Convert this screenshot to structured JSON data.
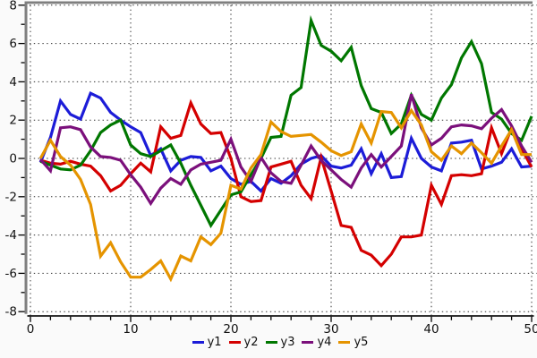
{
  "chart_data": {
    "type": "line",
    "title": "",
    "xlabel": "",
    "ylabel": "",
    "xlim": [
      0,
      50
    ],
    "ylim": [
      -8,
      8
    ],
    "x_ticks": [
      0,
      10,
      20,
      30,
      40,
      50
    ],
    "x_minor_step": 2,
    "y_ticks": [
      -8,
      -6,
      -4,
      -2,
      0,
      2,
      4,
      6,
      8
    ],
    "y_minor_step": 1,
    "grid": "dotted",
    "legend_position": "bottom-center",
    "x": [
      1,
      2,
      3,
      4,
      5,
      6,
      7,
      8,
      9,
      10,
      11,
      12,
      13,
      14,
      15,
      16,
      17,
      18,
      19,
      20,
      21,
      22,
      23,
      24,
      25,
      26,
      27,
      28,
      29,
      30,
      31,
      32,
      33,
      34,
      35,
      36,
      37,
      38,
      39,
      40,
      41,
      42,
      43,
      44,
      45,
      46,
      47,
      48,
      49,
      50
    ],
    "series": [
      {
        "name": "y1",
        "color": "#1c1cd8",
        "values": [
          -0.2,
          1.1,
          3.0,
          2.3,
          2.05,
          3.4,
          3.15,
          2.4,
          2.0,
          1.65,
          1.35,
          0.15,
          0.5,
          -0.65,
          -0.1,
          0.1,
          0.05,
          -0.65,
          -0.4,
          -1.05,
          -1.35,
          -1.2,
          -1.7,
          -1.05,
          -1.3,
          -0.9,
          -0.3,
          0.0,
          0.15,
          -0.4,
          -0.5,
          -0.35,
          0.5,
          -0.8,
          0.25,
          -1.0,
          -0.95,
          1.05,
          0.0,
          -0.45,
          -0.65,
          0.8,
          0.85,
          0.95,
          -0.55,
          -0.4,
          -0.2,
          0.5,
          -0.45,
          -0.4
        ]
      },
      {
        "name": "y2",
        "color": "#d40000",
        "values": [
          -0.1,
          -0.25,
          -0.3,
          -0.15,
          -0.3,
          -0.4,
          -0.9,
          -1.7,
          -1.4,
          -0.8,
          -0.25,
          -0.7,
          1.65,
          1.05,
          1.2,
          2.9,
          1.8,
          1.3,
          1.35,
          0.0,
          -2.0,
          -2.25,
          -2.2,
          -0.45,
          -0.3,
          -0.15,
          -1.4,
          -2.1,
          0.05,
          -1.7,
          -3.5,
          -3.6,
          -4.8,
          -5.05,
          -5.6,
          -5.0,
          -4.1,
          -4.1,
          -4.0,
          -1.4,
          -2.4,
          -0.9,
          -0.85,
          -0.9,
          -0.8,
          1.6,
          0.25,
          1.6,
          0.5,
          -0.45
        ]
      },
      {
        "name": "y3",
        "color": "#007700",
        "values": [
          -0.15,
          -0.35,
          -0.55,
          -0.6,
          -0.35,
          0.4,
          1.35,
          1.75,
          2.0,
          0.7,
          0.25,
          0.1,
          0.4,
          0.7,
          -0.25,
          -1.4,
          -2.45,
          -3.5,
          -2.7,
          -1.9,
          -1.75,
          -0.85,
          0.0,
          1.1,
          1.15,
          3.3,
          3.7,
          7.2,
          5.9,
          5.6,
          5.1,
          5.8,
          3.8,
          2.6,
          2.4,
          1.3,
          1.8,
          3.3,
          2.3,
          2.0,
          3.15,
          3.85,
          5.25,
          6.1,
          4.95,
          2.4,
          2.05,
          1.3,
          0.95,
          2.2
        ]
      },
      {
        "name": "y4",
        "color": "#7b107b",
        "values": [
          -0.05,
          -0.65,
          1.6,
          1.65,
          1.5,
          0.6,
          0.1,
          0.05,
          -0.1,
          -0.85,
          -1.5,
          -2.35,
          -1.55,
          -1.05,
          -1.35,
          -0.6,
          -0.3,
          -0.2,
          -0.1,
          1.0,
          -0.45,
          -1.2,
          0.05,
          -0.75,
          -1.2,
          -1.3,
          -0.35,
          0.65,
          -0.1,
          -0.6,
          -1.1,
          -1.5,
          -0.5,
          0.2,
          -0.45,
          0.1,
          0.65,
          3.35,
          1.6,
          0.7,
          1.05,
          1.65,
          1.75,
          1.7,
          1.55,
          2.1,
          2.55,
          1.7,
          0.65,
          -0.2
        ]
      },
      {
        "name": "y5",
        "color": "#e59400",
        "values": [
          0.0,
          0.95,
          0.1,
          -0.35,
          -1.1,
          -2.4,
          -5.1,
          -4.4,
          -5.4,
          -6.2,
          -6.2,
          -5.8,
          -5.35,
          -6.3,
          -5.1,
          -5.35,
          -4.1,
          -4.5,
          -3.9,
          -1.4,
          -1.6,
          -0.5,
          0.2,
          1.9,
          1.4,
          1.15,
          1.2,
          1.25,
          0.85,
          0.4,
          0.15,
          0.35,
          1.8,
          0.8,
          2.45,
          2.4,
          1.6,
          2.5,
          1.75,
          0.35,
          -0.1,
          0.65,
          0.25,
          0.8,
          0.3,
          -0.25,
          0.65,
          1.5,
          0.2,
          0.2
        ]
      }
    ]
  },
  "style": {
    "frame_color": "#7f7f7f",
    "axis_color": "#000000",
    "grid_color": "#303030",
    "tick_label_color": "#111111",
    "plot_background": "#ffffff",
    "page_background": "#fafafa"
  }
}
